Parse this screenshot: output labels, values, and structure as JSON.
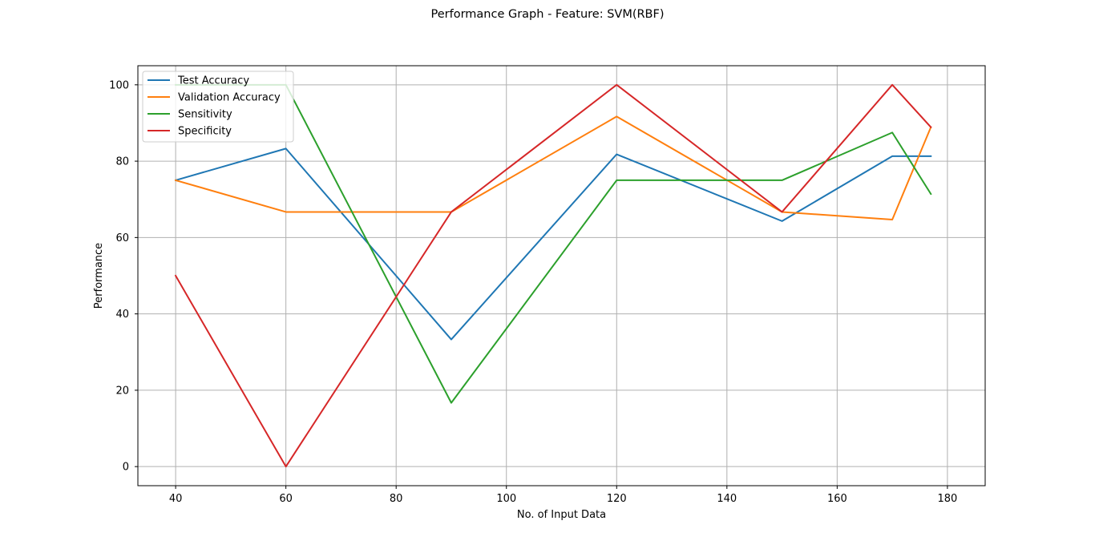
{
  "figure": {
    "title": "Performance Graph - Feature: SVM(RBF)"
  },
  "chart_data": {
    "type": "line",
    "title": "Performance Graph - Feature: SVM(RBF)",
    "xlabel": "No. of Input Data",
    "ylabel": "Performance",
    "xlim": [
      33.15,
      186.85
    ],
    "ylim": [
      -5,
      105
    ],
    "x_ticks": [
      40,
      60,
      80,
      100,
      120,
      140,
      160,
      180
    ],
    "y_ticks": [
      0,
      20,
      40,
      60,
      80,
      100
    ],
    "grid": true,
    "legend_position": "upper-left",
    "x": [
      40,
      60,
      90,
      120,
      150,
      170,
      177
    ],
    "series": [
      {
        "name": "Test Accuracy",
        "color": "#1f77b4",
        "values": [
          75,
          83.3,
          33.3,
          81.8,
          64.3,
          81.3,
          81.3
        ]
      },
      {
        "name": "Validation Accuracy",
        "color": "#ff7f0e",
        "values": [
          75,
          66.7,
          66.7,
          91.7,
          66.7,
          64.7,
          88.9
        ]
      },
      {
        "name": "Sensitivity",
        "color": "#2ca02c",
        "values": [
          100,
          100,
          16.7,
          75,
          75,
          87.5,
          71.4
        ]
      },
      {
        "name": "Specificity",
        "color": "#d62728",
        "values": [
          50,
          0,
          66.7,
          100,
          66.7,
          100,
          88.9
        ]
      }
    ]
  }
}
